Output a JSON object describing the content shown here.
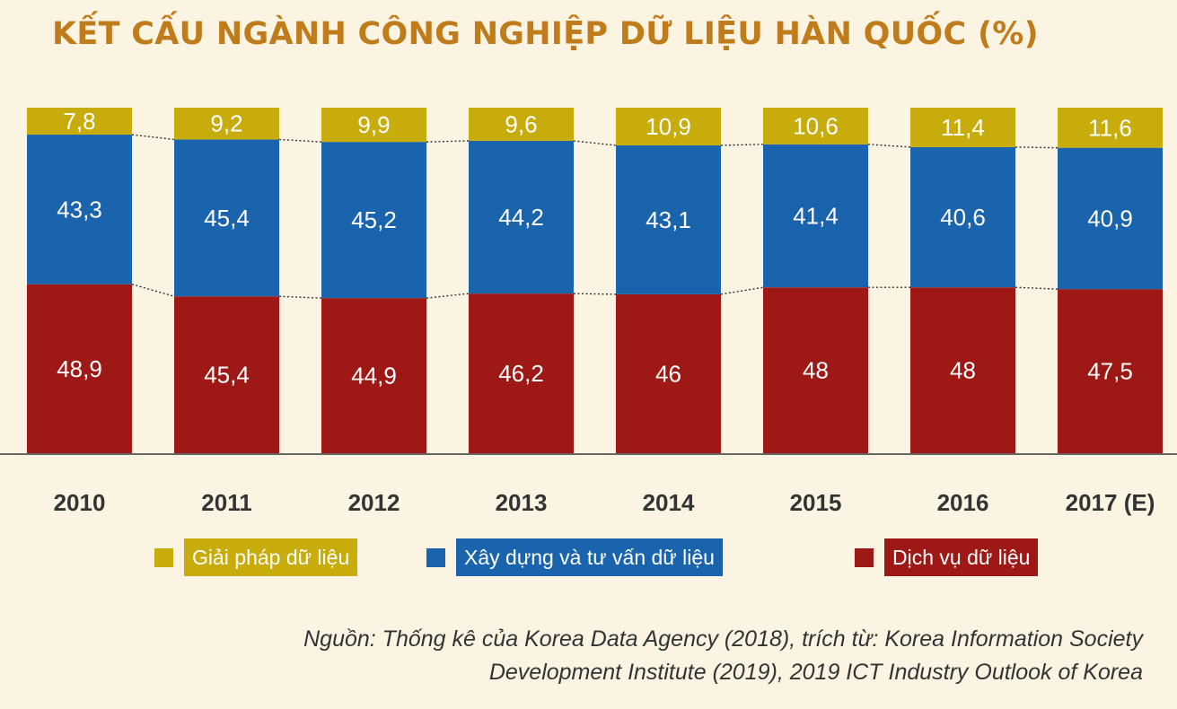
{
  "title": "KẾT CẤU NGÀNH CÔNG NGHIỆP DỮ LIỆU HÀN QUỐC (%)",
  "source": {
    "line1": "Nguồn: Thống kê của Korea Data Agency (2018), trích từ: Korea Information Society",
    "line2": "Development Institute (2019), 2019 ICT Industry Outlook of Korea"
  },
  "colors": {
    "background": "#fbf4e3",
    "title": "#c07c1a",
    "solutions": "#c8ac0b",
    "consulting": "#1a64ad",
    "services": "#9e1916"
  },
  "chart_data": {
    "type": "bar",
    "stacked": true,
    "categories": [
      "2010",
      "2011",
      "2012",
      "2013",
      "2014",
      "2015",
      "2016",
      "2017 (E)"
    ],
    "series": [
      {
        "name": "Dịch vụ dữ liệu",
        "values": [
          48.9,
          45.4,
          44.9,
          46.2,
          46,
          48,
          48,
          47.5
        ],
        "labels": [
          "48,9",
          "45,4",
          "44,9",
          "46,2",
          "46",
          "48",
          "48",
          "47,5"
        ]
      },
      {
        "name": "Xây dựng và tư vấn dữ liệu",
        "values": [
          43.3,
          45.4,
          45.2,
          44.2,
          43.1,
          41.4,
          40.6,
          40.9
        ],
        "labels": [
          "43,3",
          "45,4",
          "45,2",
          "44,2",
          "43,1",
          "41,4",
          "40,6",
          "40,9"
        ]
      },
      {
        "name": "Giải pháp dữ liệu",
        "values": [
          7.8,
          9.2,
          9.9,
          9.6,
          10.9,
          10.6,
          11.4,
          11.6
        ],
        "labels": [
          "7,8",
          "9,2",
          "9,9",
          "9,6",
          "10,9",
          "10,6",
          "11,4",
          "11,6"
        ]
      }
    ],
    "ylim": [
      0,
      100
    ],
    "legend": "bottom",
    "grid": false
  }
}
